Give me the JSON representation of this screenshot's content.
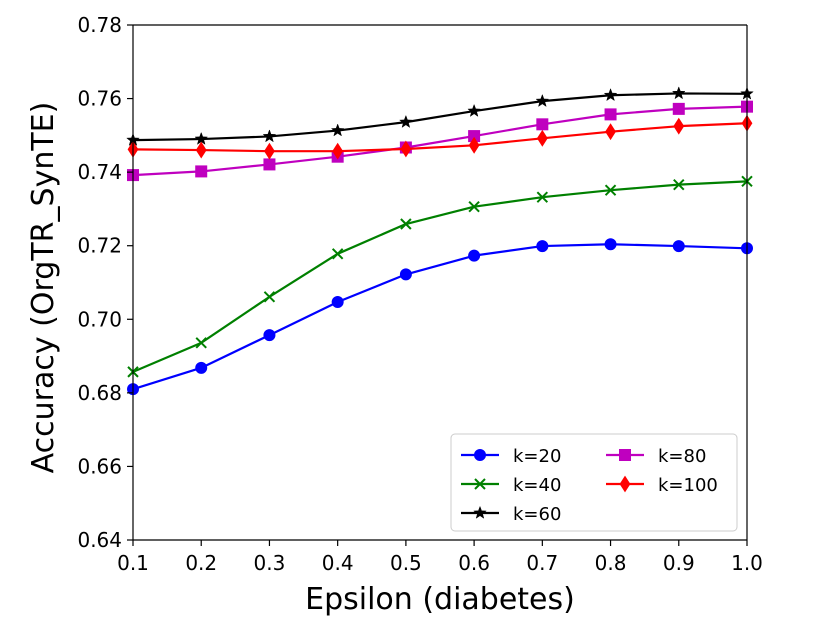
{
  "chart_data": {
    "type": "line",
    "title": "",
    "xlabel": "Epsilon (diabetes)",
    "ylabel": "Accuracy (OrgTR_SynTE)",
    "x": [
      0.1,
      0.2,
      0.3,
      0.4,
      0.5,
      0.6,
      0.7,
      0.8,
      0.9,
      1.0
    ],
    "xlim": [
      0.1,
      1.0
    ],
    "ylim": [
      0.64,
      0.78
    ],
    "xticks": [
      "0.1",
      "0.2",
      "0.3",
      "0.4",
      "0.5",
      "0.6",
      "0.7",
      "0.8",
      "0.9",
      "1.0"
    ],
    "yticks": [
      "0.64",
      "0.66",
      "0.68",
      "0.70",
      "0.72",
      "0.74",
      "0.76",
      "0.78"
    ],
    "grid": false,
    "legend_position": "bottom-right",
    "series": [
      {
        "name": "k=20",
        "color": "#0000ff",
        "marker": "circle",
        "values": [
          0.681,
          0.6868,
          0.6957,
          0.7047,
          0.7122,
          0.7173,
          0.7199,
          0.7204,
          0.7199,
          0.7193
        ]
      },
      {
        "name": "k=40",
        "color": "#008000",
        "marker": "x",
        "values": [
          0.6857,
          0.6936,
          0.7061,
          0.7178,
          0.7259,
          0.7306,
          0.7332,
          0.7351,
          0.7366,
          0.7375
        ]
      },
      {
        "name": "k=60",
        "color": "#000000",
        "marker": "star",
        "values": [
          0.7487,
          0.749,
          0.7497,
          0.7513,
          0.7536,
          0.7566,
          0.7593,
          0.7609,
          0.7614,
          0.7613
        ]
      },
      {
        "name": "k=80",
        "color": "#bf00bf",
        "marker": "square",
        "values": [
          0.7392,
          0.7402,
          0.7421,
          0.7442,
          0.7467,
          0.7498,
          0.753,
          0.7557,
          0.7572,
          0.7578
        ]
      },
      {
        "name": "k=100",
        "color": "#ff0000",
        "marker": "diamond",
        "values": [
          0.7462,
          0.746,
          0.7457,
          0.7457,
          0.7463,
          0.7473,
          0.7492,
          0.751,
          0.7525,
          0.7533
        ]
      }
    ],
    "legend_order": [
      "k=20",
      "k=40",
      "k=60",
      "k=80",
      "k=100"
    ]
  }
}
